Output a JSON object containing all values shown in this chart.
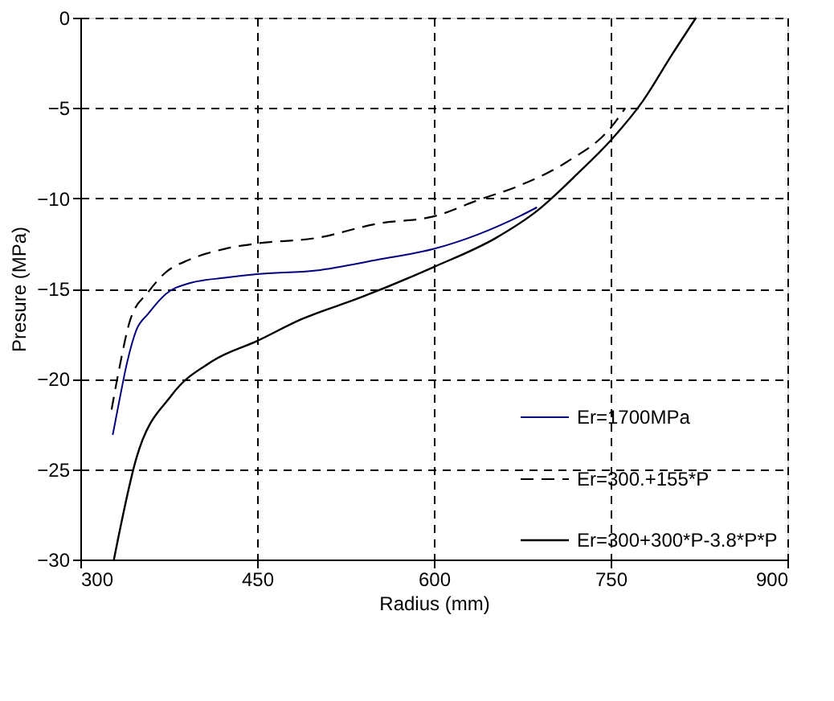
{
  "chart_data": {
    "type": "line",
    "xlabel": "Radius (mm)",
    "ylabel": "Presure (MPa)",
    "xlim": [
      300,
      900
    ],
    "xticks": [
      300,
      450,
      600,
      750,
      900
    ],
    "ylim": [
      -30,
      0
    ],
    "yticks": [
      -30,
      -25,
      -20,
      -15,
      -10,
      -5,
      0
    ],
    "grid": true,
    "legend": "bottom right",
    "series": [
      {
        "name": "Er=1700MPa",
        "color": "#000080",
        "line_style": "solid",
        "x": [
          327.5,
          332.5,
          340,
          347.5,
          357.5,
          372.5,
          392.5,
          422.5,
          450,
          500,
          552.5,
          600,
          637.5,
          672.5,
          687.5
        ],
        "values": [
          -23.1,
          -21.4,
          -19.0,
          -17.3,
          -16.4,
          -15.3,
          -14.7,
          -14.4,
          -14.2,
          -14.0,
          -13.4,
          -12.8,
          -12.0,
          -11.0,
          -10.5
        ]
      },
      {
        "name": "Er=300.+155*P",
        "color": "#000000",
        "line_style": "dashed",
        "x": [
          326.5,
          332.5,
          342.5,
          357.5,
          372.5,
          392.5,
          422.5,
          450,
          500,
          552.5,
          600,
          637.5,
          672.5,
          712.5,
          750,
          762.5
        ],
        "values": [
          -21.7,
          -19.6,
          -16.7,
          -15.2,
          -14.1,
          -13.4,
          -12.8,
          -12.5,
          -12.2,
          -11.4,
          -11.0,
          -10.1,
          -9.3,
          -8.0,
          -6.1,
          -5.0
        ]
      },
      {
        "name": "Er=300+300*P-3.8*P*P",
        "color": "#000000",
        "line_style": "solid",
        "x": [
          328.5,
          347.5,
          377.5,
          412.5,
          450,
          487.5,
          537.5,
          600,
          652.5,
          687.5,
          722.5,
          750,
          777.5,
          802.5,
          822.5
        ],
        "values": [
          -30,
          -24.4,
          -20.9,
          -19.0,
          -17.9,
          -16.7,
          -15.5,
          -13.8,
          -12.2,
          -10.7,
          -8.6,
          -6.8,
          -4.6,
          -2.0,
          0
        ]
      }
    ]
  }
}
